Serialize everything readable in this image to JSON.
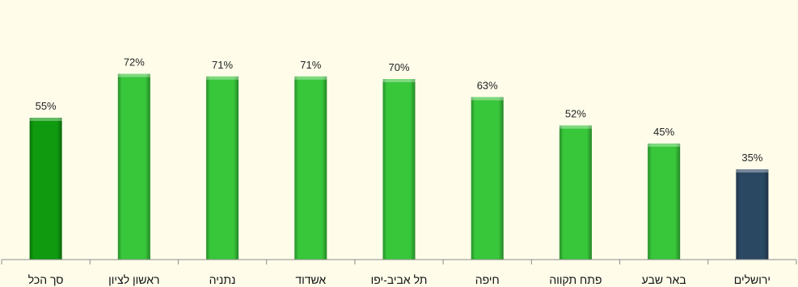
{
  "chart_data": {
    "type": "bar",
    "title": "",
    "xlabel": "",
    "ylabel": "",
    "ylim": [
      0,
      80
    ],
    "grid": false,
    "legend": "none",
    "value_suffix": "%",
    "categories": [
      "סך הכל",
      "ראשון לציון",
      "נתניה",
      "אשדוד",
      "תל אביב-יפו",
      "חיפה",
      "פתח תקווה",
      "באר שבע",
      "ירושלים"
    ],
    "values": [
      55,
      72,
      71,
      71,
      70,
      63,
      52,
      45,
      35
    ],
    "bar_colors": [
      "#0f9a0f",
      "#38c63a",
      "#38c63a",
      "#38c63a",
      "#38c63a",
      "#38c63a",
      "#38c63a",
      "#38c63a",
      "#2b4863"
    ]
  }
}
